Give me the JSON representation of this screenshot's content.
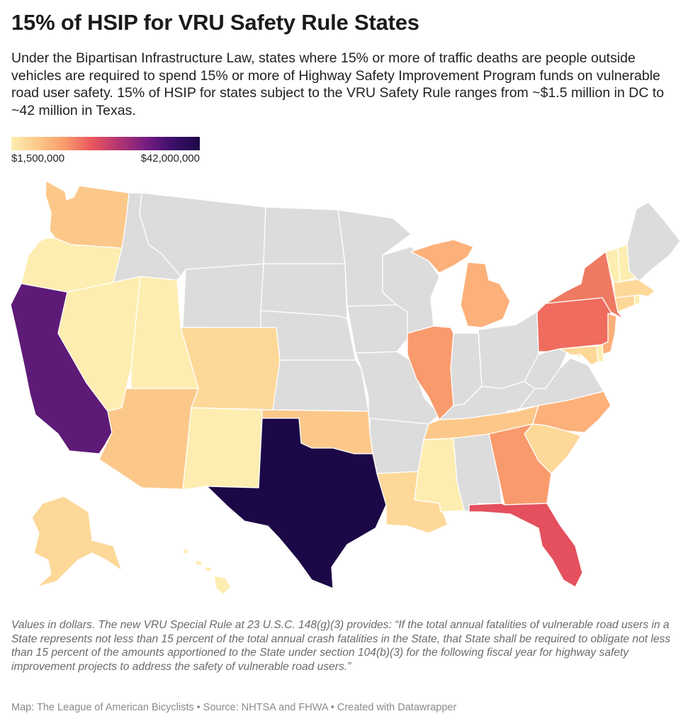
{
  "title": "15% of HSIP for VRU Safety Rule States",
  "subtitle": "Under the Bipartisan Infrastructure Law, states where 15% or more of traffic deaths are people outside vehicles are required to spend 15% or more of Highway Safety Improvement Program funds on vulnerable road user safety. 15% of HSIP for states subject to the VRU Safety Rule ranges from ~$1.5 million in DC to ~42 million in Texas.",
  "legend": {
    "min_label": "$1,500,000",
    "max_label": "$42,000,000",
    "colors": [
      "#fdedb0",
      "#fcc88a",
      "#f99a6c",
      "#e9555d",
      "#b23572",
      "#761d82",
      "#3c0f6b",
      "#1c0846"
    ]
  },
  "map": {
    "no_data_color": "#dcdcdc",
    "border_color": "#ffffff",
    "states_with_rule": [
      "Washington",
      "Oregon",
      "California",
      "Nevada",
      "Utah",
      "Arizona",
      "Colorado",
      "New Mexico",
      "Texas",
      "Oklahoma",
      "Louisiana",
      "Mississippi",
      "Illinois",
      "Michigan",
      "Tennessee",
      "Georgia",
      "Florida",
      "South Carolina",
      "North Carolina",
      "Pennsylvania",
      "New York",
      "New Jersey",
      "Delaware",
      "Maryland",
      "District of Columbia",
      "Connecticut",
      "Rhode Island",
      "Massachusetts",
      "Vermont",
      "New Hampshire",
      "Alaska",
      "Hawaii"
    ],
    "states_without_rule": [
      "Idaho",
      "Montana",
      "Wyoming",
      "North Dakota",
      "South Dakota",
      "Nebraska",
      "Kansas",
      "Minnesota",
      "Iowa",
      "Missouri",
      "Arkansas",
      "Wisconsin",
      "Indiana",
      "Ohio",
      "Kentucky",
      "West Virginia",
      "Virginia",
      "Alabama",
      "Maine"
    ]
  },
  "notes": "Values in dollars. The new VRU Special Rule at 23 U.S.C. 148(g)(3) provides: “If the total annual fatalities of vulnerable road users in a State represents not less than 15 percent of the total annual crash fatalities in the State, that State shall be required to obligate not less than 15 percent of the amounts apportioned to the State under section 104(b)(3) for the following fiscal year for highway safety improvement projects to address the safety of vulnerable road users.”",
  "source": "Map: The League of American Bicyclists • Source: NHTSA and FHWA • Created with Datawrapper"
}
